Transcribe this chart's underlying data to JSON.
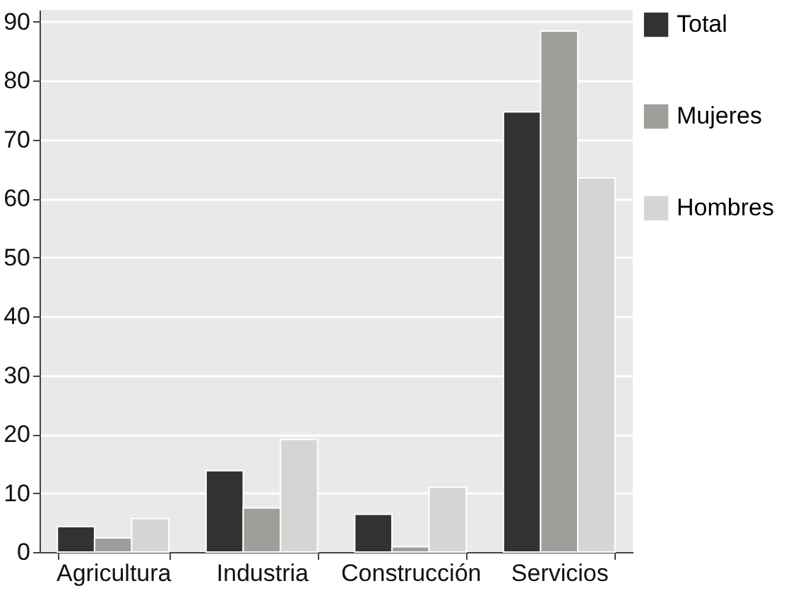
{
  "chart_data": {
    "type": "bar",
    "categories": [
      "Agricultura",
      "Industria",
      "Construcción",
      "Servicios"
    ],
    "series": [
      {
        "name": "Total",
        "color": "#333230",
        "values": [
          4.3,
          13.8,
          6.4,
          74.7
        ]
      },
      {
        "name": "Mujeres",
        "color": "#a09e9a",
        "values": [
          2.4,
          7.5,
          0.9,
          88.4
        ]
      },
      {
        "name": "Hombres",
        "color": "#d6d5d3",
        "values": [
          5.7,
          19.1,
          11.0,
          63.5
        ]
      }
    ],
    "ylim": [
      0,
      92
    ],
    "yticks": [
      0,
      10,
      20,
      30,
      40,
      50,
      60,
      70,
      80,
      90
    ],
    "grid": "y",
    "legend": "right"
  }
}
